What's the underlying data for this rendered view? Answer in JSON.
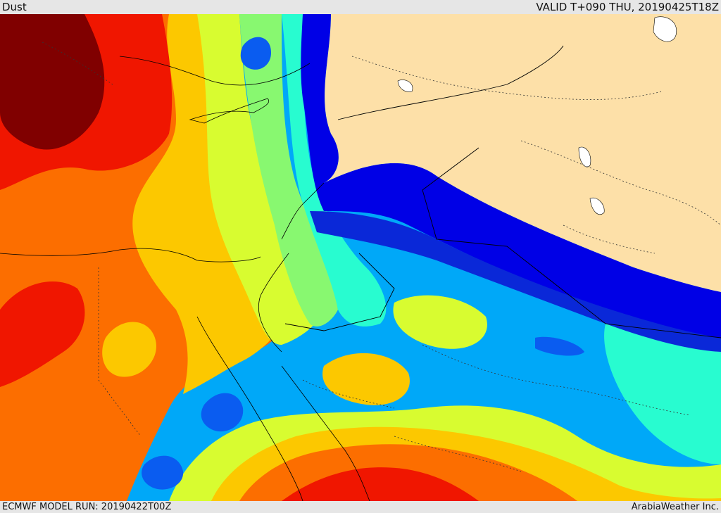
{
  "header": {
    "title": "Dust",
    "valid": "VALID T+090 THU, 20190425T18Z"
  },
  "footer": {
    "model_run": "ECMWF MODEL RUN: 20190422T00Z",
    "credit": "ArabiaWeather Inc."
  },
  "map": {
    "field": "dust",
    "palette": {
      "land_nodata": "#fde0a8",
      "level_1": "#0000e6",
      "level_2": "#0a28d8",
      "level_3": "#0a5cf0",
      "level_4": "#00a8f8",
      "level_5": "#28fcd0",
      "level_6": "#88f870",
      "level_7": "#d8fc30",
      "level_8": "#fcc800",
      "level_9": "#fc6e00",
      "level_10": "#f01600",
      "level_11": "#800000"
    }
  }
}
